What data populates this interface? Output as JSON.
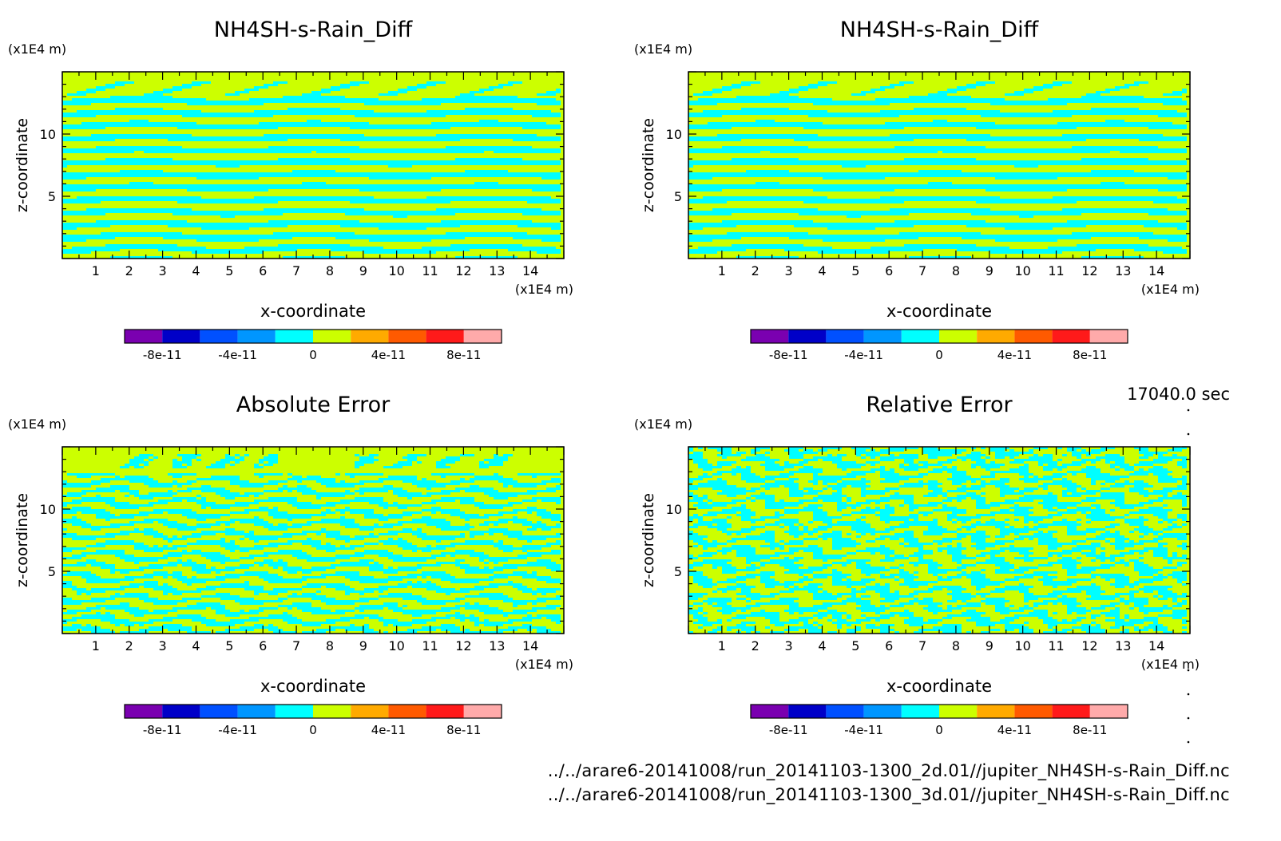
{
  "time_label": "17040.0 sec",
  "footer": {
    "file_2d": "../../arare6-20141008/run_20141103-1300_2d.01//jupiter_NH4SH-s-Rain_Diff.nc",
    "file_3d": "../../arare6-20141008/run_20141103-1300_3d.01//jupiter_NH4SH-s-Rain_Diff.nc"
  },
  "colors": {
    "band_yellow": "#ccff00",
    "band_cyan": "#00ffff",
    "colorbar": [
      "#7a00b0",
      "#0000c8",
      "#0050ff",
      "#0096ff",
      "#00ffff",
      "#ccff00",
      "#ffaa00",
      "#ff5a00",
      "#ff1a1a",
      "#ffaaaa"
    ]
  },
  "chart_data": [
    {
      "type": "heatmap",
      "title": "NH4SH-s-Rain_Diff",
      "xlabel": "x-coordinate",
      "ylabel": "z-coordinate",
      "x_unit": "(x1E4 m)",
      "y_unit": "(x1E4 m)",
      "xticks": [
        "1",
        "2",
        "3",
        "4",
        "5",
        "6",
        "7",
        "8",
        "9",
        "10",
        "11",
        "12",
        "13",
        "14"
      ],
      "yticks": [
        "5",
        "10"
      ],
      "xlim": [
        0,
        15
      ],
      "ylim": [
        0,
        15
      ],
      "colorbar_ticks": [
        "-8e-11",
        "-4e-11",
        "0",
        "4e-11",
        "8e-11"
      ],
      "colorbar_range": [
        -1e-10,
        1e-10
      ],
      "pattern": "horizontal-bands"
    },
    {
      "type": "heatmap",
      "title": "NH4SH-s-Rain_Diff",
      "xlabel": "x-coordinate",
      "ylabel": "z-coordinate",
      "x_unit": "(x1E4 m)",
      "y_unit": "(x1E4 m)",
      "xticks": [
        "1",
        "2",
        "3",
        "4",
        "5",
        "6",
        "7",
        "8",
        "9",
        "10",
        "11",
        "12",
        "13",
        "14"
      ],
      "yticks": [
        "5",
        "10"
      ],
      "xlim": [
        0,
        15
      ],
      "ylim": [
        0,
        15
      ],
      "colorbar_ticks": [
        "-8e-11",
        "-4e-11",
        "0",
        "4e-11",
        "8e-11"
      ],
      "colorbar_range": [
        -1e-10,
        1e-10
      ],
      "pattern": "horizontal-bands"
    },
    {
      "type": "heatmap",
      "title": "Absolute Error",
      "xlabel": "x-coordinate",
      "ylabel": "z-coordinate",
      "x_unit": "(x1E4 m)",
      "y_unit": "(x1E4 m)",
      "xticks": [
        "1",
        "2",
        "3",
        "4",
        "5",
        "6",
        "7",
        "8",
        "9",
        "10",
        "11",
        "12",
        "13",
        "14"
      ],
      "yticks": [
        "5",
        "10"
      ],
      "xlim": [
        0,
        15
      ],
      "ylim": [
        0,
        15
      ],
      "colorbar_ticks": [
        "-8e-11",
        "-4e-11",
        "0",
        "4e-11",
        "8e-11"
      ],
      "colorbar_range": [
        -1e-10,
        1e-10
      ],
      "pattern": "noisy-bands-solid-top"
    },
    {
      "type": "heatmap",
      "title": "Relative Error",
      "xlabel": "x-coordinate",
      "ylabel": "z-coordinate",
      "x_unit": "(x1E4 m)",
      "y_unit": "(x1E4 m)",
      "xticks": [
        "1",
        "2",
        "3",
        "4",
        "5",
        "6",
        "7",
        "8",
        "9",
        "10",
        "11",
        "12",
        "13",
        "14"
      ],
      "yticks": [
        "5",
        "10"
      ],
      "xlim": [
        0,
        15
      ],
      "ylim": [
        0,
        15
      ],
      "colorbar_ticks": [
        "-8e-11",
        "-4e-11",
        "0",
        "4e-11",
        "8e-11"
      ],
      "colorbar_range": [
        -1e-10,
        1e-10
      ],
      "pattern": "noisy-full"
    }
  ]
}
